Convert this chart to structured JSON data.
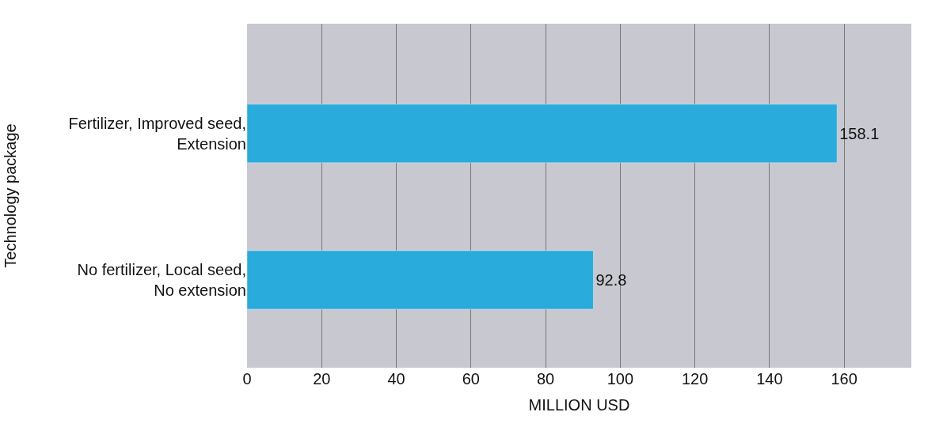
{
  "chart_data": {
    "type": "bar",
    "orientation": "horizontal",
    "xlabel": "MILLION USD",
    "ylabel": "Technology package",
    "categories": [
      "Fertilizer, Improved seed, Extension",
      "No fertilizer, Local seed, No extension"
    ],
    "values": [
      158.1,
      92.8
    ],
    "color": "#29abdb",
    "data_labels": true,
    "xlim": [
      0,
      178
    ],
    "xticks": [
      0,
      20,
      40,
      60,
      80,
      100,
      120,
      140,
      160
    ],
    "grid": "x"
  }
}
